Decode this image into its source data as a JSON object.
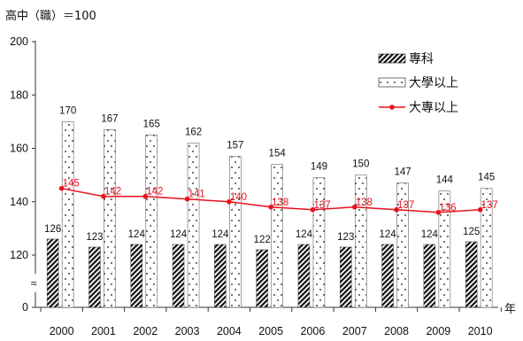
{
  "chart_data": {
    "type": "bar",
    "title": "",
    "unit_note": "高中（職）＝100",
    "xlabel": "年",
    "ylabel": "",
    "categories": [
      "2000",
      "2001",
      "2002",
      "2003",
      "2004",
      "2005",
      "2006",
      "2007",
      "2008",
      "2009",
      "2010"
    ],
    "ylim": [
      0,
      200
    ],
    "axis_break": true,
    "axis_break_symbol": "≈",
    "y_ticks": [
      0,
      120,
      140,
      160,
      180,
      200
    ],
    "y_tick_labels": [
      "0",
      "120",
      "140",
      "160",
      "180",
      "200"
    ],
    "grid": false,
    "legend_position": "top-right",
    "series": [
      {
        "name": "專科",
        "kind": "bar",
        "pattern": "diagonal-hatch",
        "color": "#111111",
        "values": [
          126,
          123,
          124,
          124,
          124,
          122,
          124,
          123,
          124,
          124,
          125
        ]
      },
      {
        "name": "大學以上",
        "kind": "bar",
        "pattern": "dotted",
        "color": "#111111",
        "values": [
          170,
          167,
          165,
          162,
          157,
          154,
          149,
          150,
          147,
          144,
          145
        ]
      },
      {
        "name": "大專以上",
        "kind": "line",
        "marker": "circle",
        "color": "#e8121d",
        "values": [
          145,
          142,
          142,
          141,
          140,
          138,
          137,
          138,
          137,
          136,
          137
        ]
      }
    ]
  }
}
